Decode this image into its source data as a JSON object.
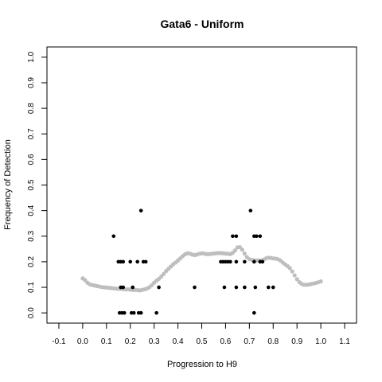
{
  "chart_data": {
    "type": "scatter",
    "title": "Gata6 - Uniform",
    "xlabel": "Progression to H9",
    "ylabel": "Frequency of Detection",
    "xlim": [
      -0.15,
      1.15
    ],
    "ylim": [
      -0.04,
      1.04
    ],
    "x_ticks": [
      "-0.1",
      "0.0",
      "0.1",
      "0.2",
      "0.3",
      "0.4",
      "0.5",
      "0.6",
      "0.7",
      "0.8",
      "0.9",
      "1.0",
      "1.1"
    ],
    "y_ticks": [
      "0.0",
      "0.1",
      "0.2",
      "0.3",
      "0.4",
      "0.5",
      "0.6",
      "0.7",
      "0.8",
      "0.9",
      "1.0"
    ],
    "grid": false,
    "legend": "none",
    "colors": {
      "observed": "#000000",
      "smoothed": "#bebebe"
    },
    "series": [
      {
        "points": [
          [
            0.13,
            0.3
          ],
          [
            0.245,
            0.4
          ],
          [
            0.15,
            0.2
          ],
          [
            0.16,
            0.2
          ],
          [
            0.17,
            0.2
          ],
          [
            0.2,
            0.2
          ],
          [
            0.23,
            0.2
          ],
          [
            0.255,
            0.2
          ],
          [
            0.265,
            0.2
          ],
          [
            0.16,
            0.1
          ],
          [
            0.17,
            0.1
          ],
          [
            0.21,
            0.1
          ],
          [
            0.32,
            0.1
          ],
          [
            0.155,
            0.0
          ],
          [
            0.165,
            0.0
          ],
          [
            0.175,
            0.0
          ],
          [
            0.205,
            0.0
          ],
          [
            0.215,
            0.0
          ],
          [
            0.235,
            0.0
          ],
          [
            0.245,
            0.0
          ],
          [
            0.31,
            0.0
          ],
          [
            0.47,
            0.1
          ],
          [
            0.58,
            0.2
          ],
          [
            0.59,
            0.2
          ],
          [
            0.6,
            0.2
          ],
          [
            0.61,
            0.2
          ],
          [
            0.62,
            0.2
          ],
          [
            0.645,
            0.2
          ],
          [
            0.68,
            0.2
          ],
          [
            0.72,
            0.2
          ],
          [
            0.745,
            0.2
          ],
          [
            0.755,
            0.2
          ],
          [
            0.63,
            0.3
          ],
          [
            0.645,
            0.3
          ],
          [
            0.72,
            0.3
          ],
          [
            0.73,
            0.3
          ],
          [
            0.745,
            0.3
          ],
          [
            0.705,
            0.4
          ],
          [
            0.595,
            0.1
          ],
          [
            0.645,
            0.1
          ],
          [
            0.68,
            0.1
          ],
          [
            0.725,
            0.1
          ],
          [
            0.78,
            0.1
          ],
          [
            0.8,
            0.1
          ],
          [
            0.72,
            0.0
          ]
        ]
      },
      {
        "points": [
          [
            0.0,
            0.135
          ],
          [
            0.01,
            0.128
          ],
          [
            0.02,
            0.118
          ],
          [
            0.03,
            0.112
          ],
          [
            0.04,
            0.109
          ],
          [
            0.05,
            0.107
          ],
          [
            0.06,
            0.105
          ],
          [
            0.07,
            0.103
          ],
          [
            0.08,
            0.101
          ],
          [
            0.09,
            0.1
          ],
          [
            0.1,
            0.099
          ],
          [
            0.11,
            0.098
          ],
          [
            0.12,
            0.097
          ],
          [
            0.13,
            0.096
          ],
          [
            0.14,
            0.095
          ],
          [
            0.15,
            0.094
          ],
          [
            0.16,
            0.094
          ],
          [
            0.17,
            0.093
          ],
          [
            0.18,
            0.092
          ],
          [
            0.19,
            0.092
          ],
          [
            0.2,
            0.091
          ],
          [
            0.21,
            0.09
          ],
          [
            0.22,
            0.09
          ],
          [
            0.23,
            0.089
          ],
          [
            0.24,
            0.088
          ],
          [
            0.25,
            0.09
          ],
          [
            0.26,
            0.092
          ],
          [
            0.27,
            0.095
          ],
          [
            0.28,
            0.1
          ],
          [
            0.29,
            0.108
          ],
          [
            0.3,
            0.118
          ],
          [
            0.31,
            0.126
          ],
          [
            0.32,
            0.133
          ],
          [
            0.33,
            0.142
          ],
          [
            0.34,
            0.152
          ],
          [
            0.35,
            0.163
          ],
          [
            0.36,
            0.172
          ],
          [
            0.37,
            0.181
          ],
          [
            0.38,
            0.19
          ],
          [
            0.39,
            0.197
          ],
          [
            0.4,
            0.205
          ],
          [
            0.41,
            0.213
          ],
          [
            0.42,
            0.222
          ],
          [
            0.43,
            0.229
          ],
          [
            0.44,
            0.233
          ],
          [
            0.45,
            0.232
          ],
          [
            0.46,
            0.228
          ],
          [
            0.47,
            0.226
          ],
          [
            0.48,
            0.228
          ],
          [
            0.49,
            0.231
          ],
          [
            0.5,
            0.233
          ],
          [
            0.51,
            0.232
          ],
          [
            0.52,
            0.23
          ],
          [
            0.53,
            0.23
          ],
          [
            0.54,
            0.231
          ],
          [
            0.55,
            0.232
          ],
          [
            0.56,
            0.233
          ],
          [
            0.57,
            0.234
          ],
          [
            0.58,
            0.234
          ],
          [
            0.59,
            0.233
          ],
          [
            0.6,
            0.232
          ],
          [
            0.61,
            0.231
          ],
          [
            0.62,
            0.23
          ],
          [
            0.63,
            0.235
          ],
          [
            0.64,
            0.244
          ],
          [
            0.65,
            0.256
          ],
          [
            0.66,
            0.257
          ],
          [
            0.67,
            0.247
          ],
          [
            0.68,
            0.232
          ],
          [
            0.69,
            0.218
          ],
          [
            0.7,
            0.21
          ],
          [
            0.71,
            0.207
          ],
          [
            0.72,
            0.206
          ],
          [
            0.73,
            0.205
          ],
          [
            0.74,
            0.205
          ],
          [
            0.75,
            0.205
          ],
          [
            0.76,
            0.208
          ],
          [
            0.77,
            0.213
          ],
          [
            0.78,
            0.216
          ],
          [
            0.79,
            0.215
          ],
          [
            0.8,
            0.213
          ],
          [
            0.81,
            0.212
          ],
          [
            0.82,
            0.21
          ],
          [
            0.83,
            0.205
          ],
          [
            0.84,
            0.197
          ],
          [
            0.85,
            0.19
          ],
          [
            0.86,
            0.183
          ],
          [
            0.87,
            0.175
          ],
          [
            0.88,
            0.162
          ],
          [
            0.89,
            0.147
          ],
          [
            0.9,
            0.132
          ],
          [
            0.91,
            0.12
          ],
          [
            0.92,
            0.113
          ],
          [
            0.93,
            0.11
          ],
          [
            0.94,
            0.11
          ],
          [
            0.95,
            0.111
          ],
          [
            0.96,
            0.113
          ],
          [
            0.97,
            0.115
          ],
          [
            0.98,
            0.117
          ],
          [
            0.99,
            0.12
          ],
          [
            1.0,
            0.123
          ]
        ]
      }
    ]
  }
}
